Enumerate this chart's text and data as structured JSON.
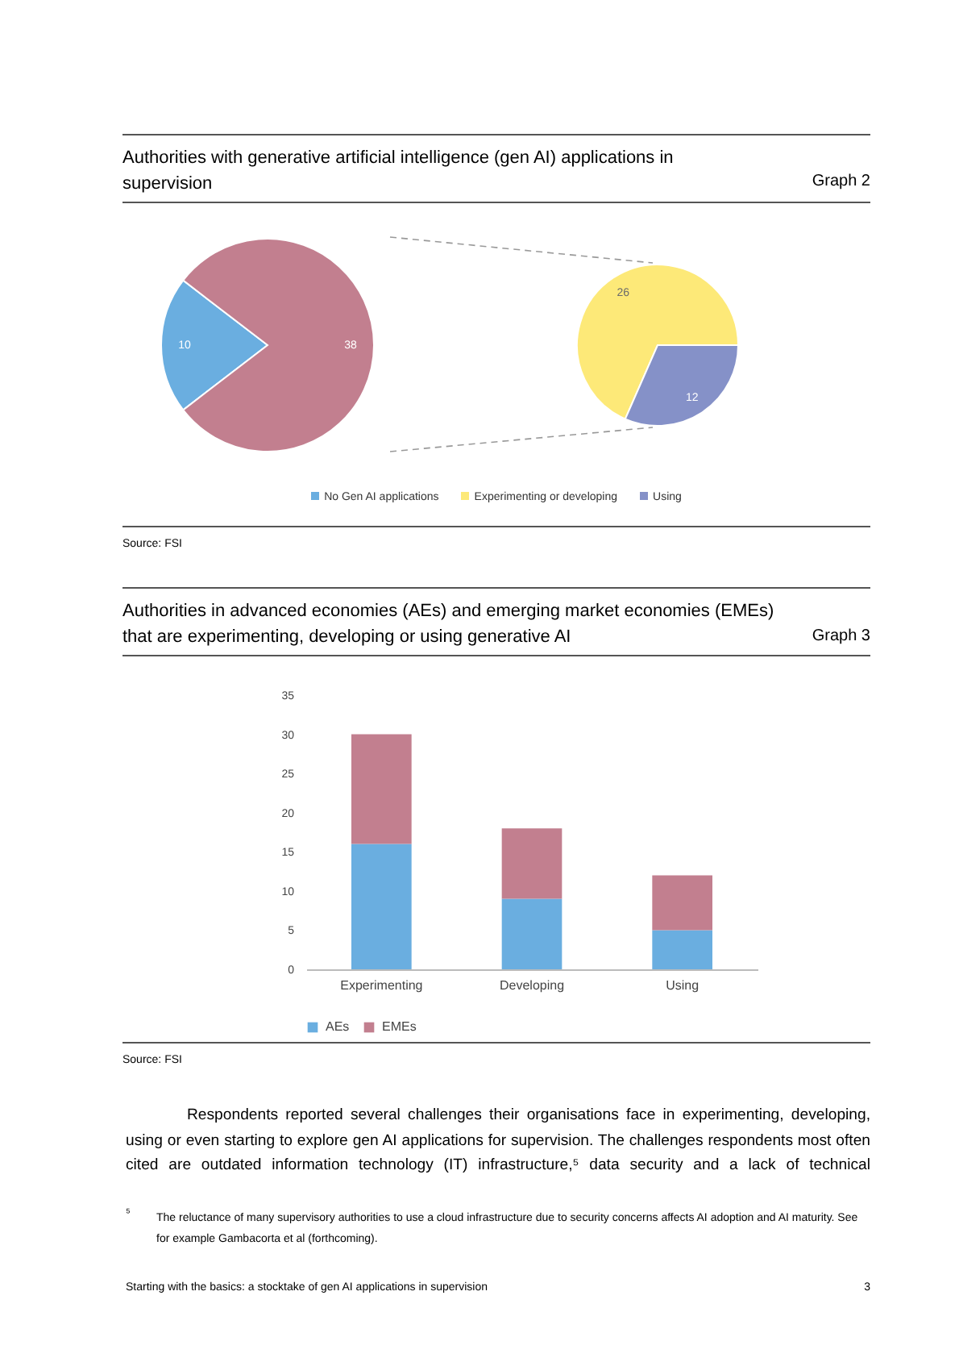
{
  "chart_data": [
    {
      "type": "pie",
      "title": "Authorities with generative artificial intelligence (gen AI) applications in supervision",
      "categories": [
        "No Gen AI applications",
        null
      ],
      "values": [
        10,
        38
      ],
      "colors": [
        "#6aaee0",
        "#c27f8f"
      ],
      "data_labels": true,
      "legend": "bottom",
      "annotations": [
        "Graph 2",
        "Source: FSI"
      ]
    },
    {
      "type": "pie",
      "categories": [
        "Experimenting or developing",
        "Using"
      ],
      "values": [
        26,
        12
      ],
      "colors": [
        "#fde978",
        "#8591c8"
      ],
      "data_labels": true,
      "legend": "bottom"
    },
    {
      "type": "bar",
      "title": "Authorities in advanced economies (AEs) and emerging market economies (EMEs) that are experimenting, developing or using generative AI",
      "categories": [
        "Experimenting",
        "Developing",
        "Using"
      ],
      "stacked": true,
      "ylim": [
        0,
        35
      ],
      "yticks": [
        0,
        5,
        10,
        15,
        20,
        25,
        30,
        35
      ],
      "grid": false,
      "legend": "bottom",
      "series": [
        {
          "name": "AEs",
          "color": "#6aaee0",
          "values": [
            16,
            9,
            5
          ]
        },
        {
          "name": "EMEs",
          "color": "#c27f8f",
          "values": [
            14,
            9,
            7
          ]
        }
      ],
      "annotations": [
        "Graph 3",
        "Source: FSI",
        "Respondents reported several challenges their organisations face in experimenting, developing, using or even starting to explore gen AI applications for supervision. The challenges respondents most often cited are outdated information technology (IT) infrastructure,⁵ data security and a lack of technical",
        "⁵",
        "The reluctance of many supervisory authorities to use a cloud infrastructure due to security concerns affects AI adoption and AI maturity. See for example Gambacorta et al (forthcoming).",
        "Starting with the basics: a stocktake of gen AI applications in supervision",
        "3"
      ]
    }
  ]
}
